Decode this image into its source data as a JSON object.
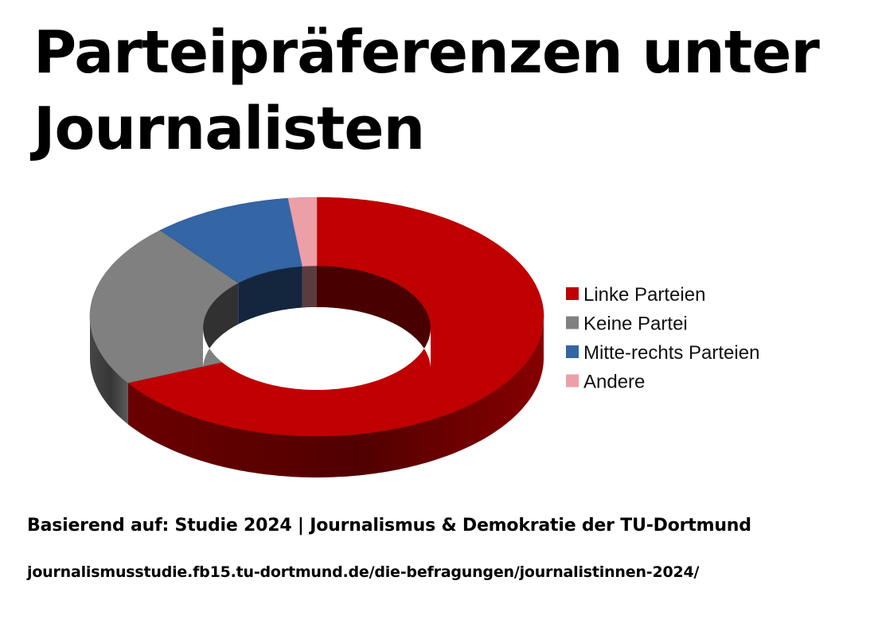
{
  "header": {
    "title_line1": "Parteipräferenzen unter",
    "title_line2": "Journalisten"
  },
  "chart_data": {
    "type": "pie",
    "style": "3d-donut",
    "title": "Parteipräferenzen unter Journalisten",
    "categories": [
      "Linke Parteien",
      "Keine Partei",
      "Mitte-rechts Parteien",
      "Andere"
    ],
    "values": [
      65,
      22,
      10,
      2
    ],
    "colors": [
      "#c00000",
      "#808080",
      "#3465a4",
      "#ed9fa7"
    ],
    "legend_position": "right"
  },
  "footer": {
    "source": "Basierend auf: Studie 2024 | Journalismus & Demokratie der TU-Dortmund",
    "url": "journalismusstudie.fb15.tu-dortmund.de/die-befragungen/journalistinnen-2024/"
  }
}
